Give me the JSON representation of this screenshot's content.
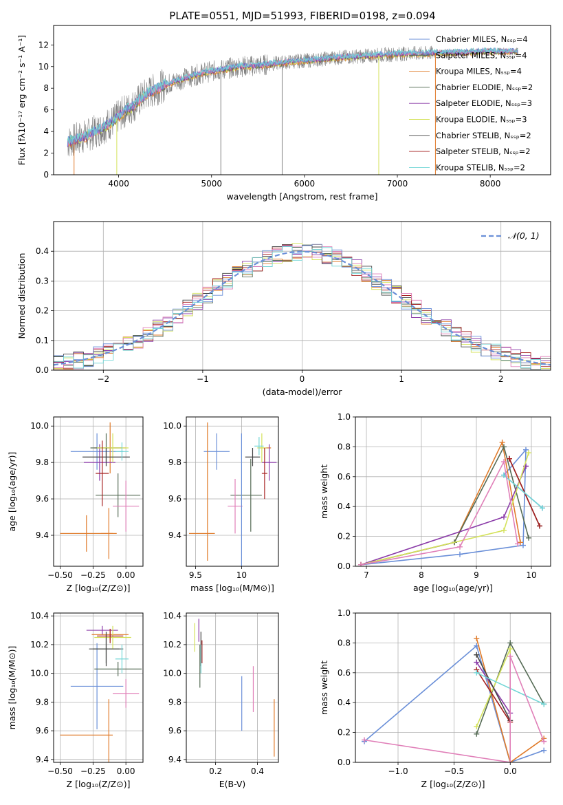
{
  "figure_title": "PLATE=0551, MJD=51993, FIBERID=0198, z=0.094",
  "colors": {
    "c1": "#6a8fd8",
    "c2": "#e07b2a",
    "c3": "#556b55",
    "c4": "#8a3aa8",
    "c5": "#d4e25a",
    "c6": "#444444",
    "c7": "#a51e1e",
    "c8": "#72d6d6",
    "c9": "#e07fb8",
    "gray": "#808080"
  },
  "chart_data": [
    {
      "id": "spectrum",
      "type": "line",
      "xlabel": "wavelength [Angstrom, rest frame]",
      "ylabel": "Flux [fλ10⁻¹⁷ erg cm⁻² s⁻¹ A⁻¹]",
      "xlim": [
        3300,
        8650
      ],
      "ylim": [
        0,
        13.8
      ],
      "xticks": [
        4000,
        5000,
        6000,
        7000,
        8000
      ],
      "yticks": [
        0,
        2,
        4,
        6,
        8,
        10,
        12
      ],
      "grid": false,
      "legend_position": "right",
      "legend": [
        {
          "name": "Chabrier MILES, N_SSP=4",
          "color_key": "c1"
        },
        {
          "name": "Salpeter MILES, N_SSP=4",
          "color_key": "c3"
        },
        {
          "name": "Kroupa MILES, N_SSP=4",
          "color_key": "c2"
        },
        {
          "name": "Chabrier ELODIE, N_SSP=2",
          "color_key": "c3"
        },
        {
          "name": "Salpeter ELODIE, N_SSP=3",
          "color_key": "c4"
        },
        {
          "name": "Kroupa ELODIE, N_SSP=3",
          "color_key": "c5"
        },
        {
          "name": "Chabrier STELIB, N_SSP=2",
          "color_key": "c6"
        },
        {
          "name": "Salpeter STELIB, N_SSP=2",
          "color_key": "c7"
        },
        {
          "name": "Kroupa STELIB, N_SSP=2",
          "color_key": "c8"
        }
      ],
      "data_range": [
        3450,
        8300
      ],
      "model_envelope": {
        "x": [
          3450,
          3550,
          3650,
          3800,
          3950,
          4050,
          4150,
          4300,
          4500,
          4700,
          4900,
          5100,
          5300,
          5500,
          5700,
          5900,
          6100,
          6300,
          6500,
          6700,
          6900,
          7100,
          7300,
          7500,
          7700,
          7900,
          8100,
          8300
        ],
        "y": [
          3.0,
          3.3,
          3.6,
          4.2,
          5.0,
          5.8,
          6.3,
          7.5,
          8.3,
          8.9,
          9.4,
          9.7,
          10.0,
          10.1,
          10.3,
          10.5,
          10.6,
          10.8,
          10.9,
          11.0,
          11.1,
          11.2,
          11.2,
          11.3,
          11.3,
          11.4,
          11.4,
          11.4
        ]
      },
      "masked_spikes": [
        {
          "x": 3520,
          "color_key": "c2"
        },
        {
          "x": 3980,
          "color_key": "c5"
        },
        {
          "x": 5100,
          "color_key": "gray"
        },
        {
          "x": 5760,
          "color_key": "gray"
        },
        {
          "x": 6800,
          "color_key": "c5"
        },
        {
          "x": 7410,
          "color_key": "c2"
        }
      ]
    },
    {
      "id": "residuals",
      "type": "histogram",
      "xlabel": "(data-model)/error",
      "ylabel": "Normed distribution",
      "xlim": [
        -2.5,
        2.5
      ],
      "ylim": [
        0,
        0.5
      ],
      "xticks": [
        -2,
        -1,
        0,
        1,
        2
      ],
      "yticks": [
        0.0,
        0.1,
        0.2,
        0.3,
        0.4
      ],
      "grid": true,
      "legend_position": "top-right",
      "legend": [
        {
          "name": "𝒩(0, 1)",
          "color_key": "c1",
          "style": "dashed"
        }
      ],
      "bin_width": 0.1,
      "curve": "normal(0,1)"
    },
    {
      "id": "age_vs_Z",
      "type": "errorbar",
      "xlabel": "Z [log₁₀(Z/Z⊙)]",
      "ylabel": "age  [log₁₀(age/yr)]",
      "xlim": [
        -0.55,
        0.13
      ],
      "ylim": [
        9.23,
        10.05
      ],
      "xticks": [
        -0.5,
        -0.25,
        0.0
      ],
      "xticklabels": [
        "−0.50",
        "−0.25",
        "0.00"
      ],
      "yticks": [
        9.4,
        9.6,
        9.8,
        10.0
      ],
      "grid": true,
      "points": [
        {
          "x": -0.22,
          "y": 9.86,
          "xerr": 0.2,
          "yerr": 0.1,
          "color_key": "c1"
        },
        {
          "x": -0.3,
          "y": 9.41,
          "xerr": 0.2,
          "yerr": 0.1,
          "color_key": "c2"
        },
        {
          "x": -0.13,
          "y": 9.41,
          "xerr": 0.06,
          "yerr": 0.14,
          "color_key": "c2"
        },
        {
          "x": -0.12,
          "y": 9.88,
          "xerr": 0.12,
          "yerr": 0.14,
          "color_key": "c2"
        },
        {
          "x": -0.06,
          "y": 9.62,
          "xerr": 0.17,
          "yerr": 0.12,
          "color_key": "c3"
        },
        {
          "x": -0.15,
          "y": 9.88,
          "xerr": 0.12,
          "yerr": 0.08,
          "color_key": "c3"
        },
        {
          "x": -0.2,
          "y": 9.8,
          "xerr": 0.12,
          "yerr": 0.1,
          "color_key": "c4"
        },
        {
          "x": -0.1,
          "y": 9.88,
          "xerr": 0.12,
          "yerr": 0.08,
          "color_key": "c5"
        },
        {
          "x": -0.15,
          "y": 9.83,
          "xerr": 0.18,
          "yerr": 0.05,
          "color_key": "c6"
        },
        {
          "x": -0.18,
          "y": 9.74,
          "xerr": 0.05,
          "yerr": 0.18,
          "color_key": "c7"
        },
        {
          "x": -0.03,
          "y": 9.86,
          "xerr": 0.05,
          "yerr": 0.05,
          "color_key": "c8"
        },
        {
          "x": 0.0,
          "y": 9.56,
          "xerr": 0.1,
          "yerr": 0.14,
          "color_key": "c9"
        }
      ]
    },
    {
      "id": "age_vs_mass",
      "type": "errorbar",
      "xlabel": "mass [log₁₀(M/M⊙)]",
      "ylabel": "",
      "xlim": [
        9.4,
        10.4
      ],
      "ylim": [
        9.23,
        10.05
      ],
      "xticks": [
        9.5,
        10.0
      ],
      "yticks": [
        9.4,
        9.6,
        9.8,
        10.0
      ],
      "grid": true,
      "points": [
        {
          "x": 9.73,
          "y": 9.86,
          "xerr": 0.14,
          "yerr": 0.1,
          "color_key": "c1"
        },
        {
          "x": 9.57,
          "y": 9.41,
          "xerr": 0.14,
          "yerr": 0.0,
          "color_key": "c2"
        },
        {
          "x": 9.63,
          "y": 9.64,
          "xerr": 0.0,
          "yerr": 0.38,
          "color_key": "c2"
        },
        {
          "x": 10.25,
          "y": 9.88,
          "xerr": 0.07,
          "yerr": 0.0,
          "color_key": "c2"
        },
        {
          "x": 10.05,
          "y": 9.62,
          "xerr": 0.17,
          "yerr": 0.0,
          "color_key": "c3"
        },
        {
          "x": 10.1,
          "y": 9.62,
          "xerr": 0.0,
          "yerr": 0.2,
          "color_key": "c3"
        },
        {
          "x": 10.3,
          "y": 9.8,
          "xerr": 0.08,
          "yerr": 0.1,
          "color_key": "c4"
        },
        {
          "x": 10.22,
          "y": 9.88,
          "xerr": 0.05,
          "yerr": 0.08,
          "color_key": "c5"
        },
        {
          "x": 10.12,
          "y": 9.83,
          "xerr": 0.08,
          "yerr": 0.05,
          "color_key": "c6"
        },
        {
          "x": 10.25,
          "y": 9.74,
          "xerr": 0.03,
          "yerr": 0.14,
          "color_key": "c7"
        },
        {
          "x": 10.19,
          "y": 9.89,
          "xerr": 0.05,
          "yerr": 0.05,
          "color_key": "c8"
        },
        {
          "x": 9.93,
          "y": 9.56,
          "xerr": 0.08,
          "yerr": 0.15,
          "color_key": "c9"
        },
        {
          "x": 10.0,
          "y": 9.56,
          "xerr": 0.0,
          "yerr": 0.4,
          "color_key": "c1"
        }
      ]
    },
    {
      "id": "weight_vs_age",
      "type": "line",
      "xlabel": "age  [log₁₀(age/yr)]",
      "ylabel": "mass weight",
      "xlim": [
        6.8,
        10.35
      ],
      "ylim": [
        0.0,
        1.0
      ],
      "xticks": [
        7,
        8,
        9,
        10
      ],
      "yticks": [
        0.0,
        0.2,
        0.4,
        0.6,
        0.8,
        1.0
      ],
      "grid": true,
      "series": [
        {
          "color_key": "c1",
          "x": [
            6.9,
            8.7,
            9.85,
            9.9,
            9.5,
            10.2
          ],
          "y": [
            0.01,
            0.08,
            0.14,
            0.78,
            0.61,
            0.39
          ]
        },
        {
          "color_key": "c2",
          "x": [
            6.9,
            8.6,
            9.47,
            9.8
          ],
          "y": [
            0.01,
            0.16,
            0.83,
            0.16
          ]
        },
        {
          "color_key": "c3",
          "x": [
            6.9,
            8.6,
            9.5,
            9.95
          ],
          "y": [
            0.01,
            0.16,
            0.8,
            0.19
          ]
        },
        {
          "color_key": "c4",
          "x": [
            6.9,
            9.5,
            9.9,
            9.9
          ],
          "y": [
            0.01,
            0.33,
            0.67,
            0.67
          ]
        },
        {
          "color_key": "c5",
          "x": [
            6.9,
            9.5,
            9.95
          ],
          "y": [
            0.01,
            0.24,
            0.76
          ]
        },
        {
          "color_key": "c6",
          "x": [
            9.6,
            10.15
          ],
          "y": [
            0.72,
            0.27
          ]
        },
        {
          "color_key": "c7",
          "x": [
            9.6,
            10.15
          ],
          "y": [
            0.72,
            0.27
          ]
        },
        {
          "color_key": "c8",
          "x": [
            9.5,
            10.2
          ],
          "y": [
            0.61,
            0.39
          ]
        },
        {
          "color_key": "c9",
          "x": [
            6.9,
            8.7,
            9.5,
            9.75
          ],
          "y": [
            0.01,
            0.13,
            0.7,
            0.15
          ]
        }
      ]
    },
    {
      "id": "mass_vs_Z",
      "type": "errorbar",
      "xlabel": "Z [log₁₀(Z/Z⊙)]",
      "ylabel": "mass [log₁₀(M/M⊙)]",
      "xlim": [
        -0.55,
        0.13
      ],
      "ylim": [
        9.38,
        10.42
      ],
      "xticks": [
        -0.5,
        -0.25,
        0.0
      ],
      "xticklabels": [
        "−0.50",
        "−0.25",
        "0.00"
      ],
      "yticks": [
        9.4,
        9.6,
        9.8,
        10.0,
        10.2,
        10.4
      ],
      "grid": true,
      "points": [
        {
          "x": -0.22,
          "y": 9.91,
          "xerr": 0.2,
          "yerr": 0.3,
          "color_key": "c1"
        },
        {
          "x": -0.3,
          "y": 9.57,
          "xerr": 0.2,
          "yerr": 0.0,
          "color_key": "c2"
        },
        {
          "x": -0.13,
          "y": 9.57,
          "xerr": 0.0,
          "yerr": 0.25,
          "color_key": "c2"
        },
        {
          "x": -0.12,
          "y": 10.27,
          "xerr": 0.14,
          "yerr": 0.04,
          "color_key": "c2"
        },
        {
          "x": -0.06,
          "y": 10.03,
          "xerr": 0.18,
          "yerr": 0.05,
          "color_key": "c3"
        },
        {
          "x": -0.15,
          "y": 10.17,
          "xerr": 0.1,
          "yerr": 0.1,
          "color_key": "c3"
        },
        {
          "x": -0.18,
          "y": 10.3,
          "xerr": 0.12,
          "yerr": 0.03,
          "color_key": "c4"
        },
        {
          "x": -0.1,
          "y": 10.25,
          "xerr": 0.14,
          "yerr": 0.08,
          "color_key": "c5"
        },
        {
          "x": -0.15,
          "y": 10.17,
          "xerr": 0.13,
          "yerr": 0.12,
          "color_key": "c6"
        },
        {
          "x": -0.12,
          "y": 10.26,
          "xerr": 0.1,
          "yerr": 0.05,
          "color_key": "c7"
        },
        {
          "x": -0.03,
          "y": 10.1,
          "xerr": 0.05,
          "yerr": 0.1,
          "color_key": "c8"
        },
        {
          "x": 0.0,
          "y": 9.86,
          "xerr": 0.1,
          "yerr": 0.1,
          "color_key": "c9"
        }
      ]
    },
    {
      "id": "mass_vs_ebv",
      "type": "errorbar",
      "xlabel": "E(B-V)",
      "ylabel": "",
      "xlim": [
        0.06,
        0.5
      ],
      "ylim": [
        9.38,
        10.42
      ],
      "xticks": [
        0.2,
        0.4
      ],
      "yticks": [
        9.4,
        9.6,
        9.8,
        10.0,
        10.2,
        10.4
      ],
      "grid": true,
      "points": [
        {
          "x": 0.1,
          "y": 10.25,
          "xerr": 0.0,
          "yerr": 0.1,
          "color_key": "c5"
        },
        {
          "x": 0.12,
          "y": 10.3,
          "xerr": 0.0,
          "yerr": 0.08,
          "color_key": "c4"
        },
        {
          "x": 0.13,
          "y": 10.17,
          "xerr": 0.0,
          "yerr": 0.12,
          "color_key": "c6"
        },
        {
          "x": 0.125,
          "y": 10.05,
          "xerr": 0.0,
          "yerr": 0.15,
          "color_key": "c3"
        },
        {
          "x": 0.135,
          "y": 10.15,
          "xerr": 0.0,
          "yerr": 0.08,
          "color_key": "c7"
        },
        {
          "x": 0.13,
          "y": 10.1,
          "xerr": 0.0,
          "yerr": 0.1,
          "color_key": "c8"
        },
        {
          "x": 0.325,
          "y": 9.79,
          "xerr": 0.0,
          "yerr": 0.19,
          "color_key": "c1"
        },
        {
          "x": 0.38,
          "y": 9.89,
          "xerr": 0.0,
          "yerr": 0.16,
          "color_key": "c9"
        },
        {
          "x": 0.48,
          "y": 9.62,
          "xerr": 0.0,
          "yerr": 0.2,
          "color_key": "c2"
        }
      ]
    },
    {
      "id": "weight_vs_Z",
      "type": "line",
      "xlabel": "Z [log₁₀(Z/Z⊙)]",
      "ylabel": "mass weight",
      "xlim": [
        -1.38,
        0.36
      ],
      "ylim": [
        0.0,
        1.0
      ],
      "xticks": [
        -1.0,
        -0.5,
        0.0
      ],
      "xticklabels": [
        "−1.0",
        "−0.5",
        "0.0"
      ],
      "yticks": [
        0.0,
        0.2,
        0.4,
        0.6,
        0.8,
        1.0
      ],
      "grid": true,
      "series": [
        {
          "color_key": "c1",
          "x": [
            -1.3,
            -0.3,
            0.0,
            0.3
          ],
          "y": [
            0.14,
            0.78,
            0.0,
            0.08
          ]
        },
        {
          "color_key": "c2",
          "x": [
            -0.3,
            0.0,
            0.3
          ],
          "y": [
            0.83,
            0.0,
            0.16
          ]
        },
        {
          "color_key": "c3",
          "x": [
            -0.3,
            0.0,
            0.3
          ],
          "y": [
            0.19,
            0.8,
            0.39
          ]
        },
        {
          "color_key": "c4",
          "x": [
            -0.3,
            0.0
          ],
          "y": [
            0.67,
            0.33
          ]
        },
        {
          "color_key": "c5",
          "x": [
            -0.3,
            0.0,
            0.0
          ],
          "y": [
            0.24,
            0.76,
            0.0
          ]
        },
        {
          "color_key": "c6",
          "x": [
            -0.3,
            0.0
          ],
          "y": [
            0.72,
            0.28
          ]
        },
        {
          "color_key": "c7",
          "x": [
            -0.3,
            0.0
          ],
          "y": [
            0.62,
            0.27
          ]
        },
        {
          "color_key": "c8",
          "x": [
            -0.3,
            0.3
          ],
          "y": [
            0.6,
            0.39
          ]
        },
        {
          "color_key": "c9",
          "x": [
            -1.3,
            0.0,
            0.0,
            0.3
          ],
          "y": [
            0.15,
            0.0,
            0.71,
            0.14
          ]
        }
      ]
    }
  ]
}
